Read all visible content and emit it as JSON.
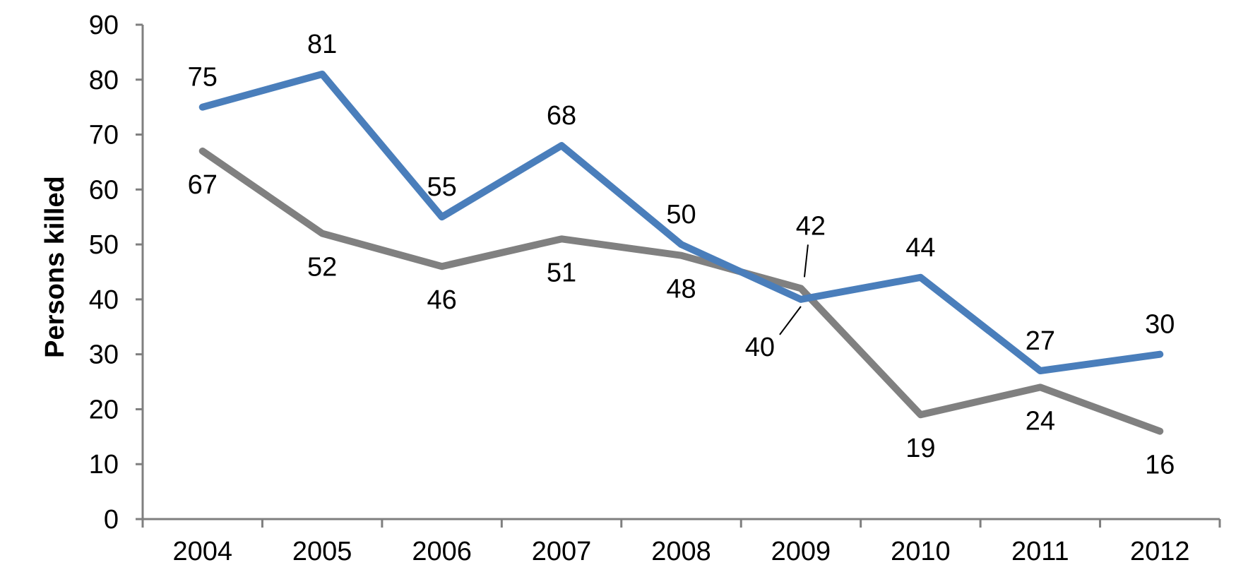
{
  "chart_data": {
    "type": "line",
    "categories": [
      "2004",
      "2005",
      "2006",
      "2007",
      "2008",
      "2009",
      "2010",
      "2011",
      "2012"
    ],
    "ylabel": "Persons killed",
    "xlabel": "",
    "ylim": [
      0,
      90
    ],
    "yticks": [
      "0",
      "10",
      "20",
      "30",
      "40",
      "50",
      "60",
      "70",
      "80",
      "90"
    ],
    "grid": false,
    "legend": "none",
    "series": [
      {
        "color": "#4a7ebb",
        "values": [
          75,
          81,
          55,
          68,
          50,
          40,
          44,
          27,
          30
        ],
        "label_position": [
          "above",
          "above",
          "above",
          "above",
          "above",
          "below-left-leader",
          "above",
          "above",
          "above"
        ]
      },
      {
        "color": "#808080",
        "values": [
          67,
          52,
          46,
          51,
          48,
          42,
          19,
          24,
          16
        ],
        "label_position": [
          "below",
          "below",
          "below",
          "below",
          "below",
          "above-leader",
          "below",
          "below",
          "below"
        ]
      }
    ]
  }
}
